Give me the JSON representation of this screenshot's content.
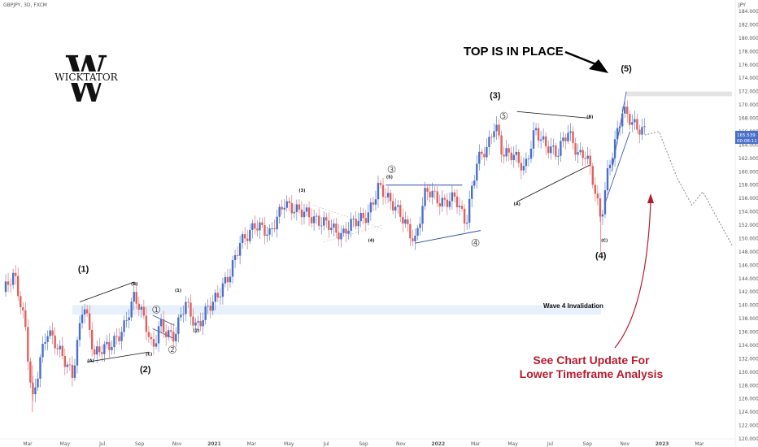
{
  "header": {
    "symbol": "GBPJPY, 3D, FXCM",
    "currency": "JPY"
  },
  "logo": {
    "text": "WICKTATOR"
  },
  "annotations": {
    "headline": "TOP IS IN PLACE",
    "wave4_invalidation": "Wave 4 Invalidation",
    "update_line1": "See Chart Update For",
    "update_line2": "Lower Timeframe Analysis"
  },
  "price_badge": {
    "price": "165.539",
    "countdown": "00:08:11"
  },
  "colors": {
    "up": "#4a6fc9",
    "down": "#e0615d",
    "invalidation_band": "#e8f0fb",
    "headline": "#000000",
    "update_text": "#b71c2e"
  },
  "chart_data": {
    "type": "candlestick",
    "y_axis": {
      "side": "right",
      "min": 120,
      "max": 184,
      "ticks": [
        120,
        122,
        124,
        126,
        128,
        130,
        132,
        134,
        136,
        138,
        140,
        142,
        144,
        146,
        148,
        150,
        152,
        154,
        156,
        158,
        160,
        162,
        164,
        166,
        168,
        170,
        172,
        174,
        176,
        178,
        180,
        182,
        184
      ]
    },
    "x_ticks": [
      "Mar",
      "May",
      "Jul",
      "Sep",
      "Nov",
      "2021",
      "Mar",
      "May",
      "Jul",
      "Sep",
      "Nov",
      "2022",
      "Mar",
      "May",
      "Jul",
      "Sep",
      "Nov",
      "2023",
      "Mar"
    ],
    "price_path": [
      {
        "t": 0,
        "p": 142
      },
      {
        "t": 0.015,
        "p": 144
      },
      {
        "t": 0.03,
        "p": 137
      },
      {
        "t": 0.04,
        "p": 126
      },
      {
        "t": 0.05,
        "p": 132
      },
      {
        "t": 0.06,
        "p": 136
      },
      {
        "t": 0.075,
        "p": 133
      },
      {
        "t": 0.095,
        "p": 130
      },
      {
        "t": 0.11,
        "p": 141
      },
      {
        "t": 0.125,
        "p": 132
      },
      {
        "t": 0.145,
        "p": 134
      },
      {
        "t": 0.165,
        "p": 137
      },
      {
        "t": 0.18,
        "p": 141
      },
      {
        "t": 0.195,
        "p": 137
      },
      {
        "t": 0.205,
        "p": 133.5
      },
      {
        "t": 0.215,
        "p": 138
      },
      {
        "t": 0.225,
        "p": 136
      },
      {
        "t": 0.235,
        "p": 135
      },
      {
        "t": 0.25,
        "p": 140
      },
      {
        "t": 0.265,
        "p": 137
      },
      {
        "t": 0.28,
        "p": 140
      },
      {
        "t": 0.295,
        "p": 141
      },
      {
        "t": 0.31,
        "p": 144
      },
      {
        "t": 0.325,
        "p": 150
      },
      {
        "t": 0.345,
        "p": 152
      },
      {
        "t": 0.365,
        "p": 150
      },
      {
        "t": 0.385,
        "p": 156
      },
      {
        "t": 0.405,
        "p": 154
      },
      {
        "t": 0.425,
        "p": 152.5
      },
      {
        "t": 0.445,
        "p": 153
      },
      {
        "t": 0.465,
        "p": 150
      },
      {
        "t": 0.48,
        "p": 152
      },
      {
        "t": 0.5,
        "p": 154
      },
      {
        "t": 0.515,
        "p": 158
      },
      {
        "t": 0.53,
        "p": 155
      },
      {
        "t": 0.55,
        "p": 153
      },
      {
        "t": 0.565,
        "p": 150
      },
      {
        "t": 0.58,
        "p": 157
      },
      {
        "t": 0.6,
        "p": 155
      },
      {
        "t": 0.62,
        "p": 157
      },
      {
        "t": 0.635,
        "p": 152
      },
      {
        "t": 0.65,
        "p": 161
      },
      {
        "t": 0.665,
        "p": 164
      },
      {
        "t": 0.675,
        "p": 168
      },
      {
        "t": 0.685,
        "p": 163
      },
      {
        "t": 0.7,
        "p": 162
      },
      {
        "t": 0.715,
        "p": 160
      },
      {
        "t": 0.73,
        "p": 167
      },
      {
        "t": 0.745,
        "p": 164
      },
      {
        "t": 0.76,
        "p": 162
      },
      {
        "t": 0.775,
        "p": 166
      },
      {
        "t": 0.79,
        "p": 163
      },
      {
        "t": 0.8,
        "p": 163
      },
      {
        "t": 0.81,
        "p": 158
      },
      {
        "t": 0.82,
        "p": 152
      },
      {
        "t": 0.83,
        "p": 160
      },
      {
        "t": 0.84,
        "p": 165
      },
      {
        "t": 0.85,
        "p": 170
      },
      {
        "t": 0.86,
        "p": 168
      },
      {
        "t": 0.87,
        "p": 166
      },
      {
        "t": 0.88,
        "p": 165.5
      }
    ],
    "projection": [
      {
        "t": 0.88,
        "p": 165.5
      },
      {
        "t": 0.9,
        "p": 166
      },
      {
        "t": 0.925,
        "p": 159
      },
      {
        "t": 0.945,
        "p": 155
      },
      {
        "t": 0.96,
        "p": 157
      },
      {
        "t": 1.0,
        "p": 149
      }
    ],
    "wave_labels": [
      {
        "text": "(1)",
        "t": 0.11,
        "p": 145,
        "size": "big"
      },
      {
        "text": "(2)",
        "t": 0.195,
        "p": 130,
        "size": "big"
      },
      {
        "text": "(3)",
        "t": 0.675,
        "p": 171,
        "size": "big"
      },
      {
        "text": "(4)",
        "t": 0.82,
        "p": 147,
        "size": "big"
      },
      {
        "text": "(5)",
        "t": 0.855,
        "p": 175,
        "size": "big"
      },
      {
        "text": "(B)",
        "t": 0.18,
        "p": 143,
        "size": "small"
      },
      {
        "text": "(A)",
        "t": 0.12,
        "p": 131.5,
        "size": "small"
      },
      {
        "text": "(C)",
        "t": 0.2,
        "p": 132.5,
        "size": "small"
      },
      {
        "text": "(1)",
        "t": 0.24,
        "p": 142,
        "size": "small"
      },
      {
        "text": "(2)",
        "t": 0.265,
        "p": 136,
        "size": "small"
      },
      {
        "text": "(3)",
        "t": 0.41,
        "p": 157,
        "size": "small"
      },
      {
        "text": "(4)",
        "t": 0.505,
        "p": 149.5,
        "size": "small"
      },
      {
        "text": "(5)",
        "t": 0.53,
        "p": 159,
        "size": "small"
      },
      {
        "text": "(A)",
        "t": 0.705,
        "p": 155,
        "size": "small"
      },
      {
        "text": "(B)",
        "t": 0.805,
        "p": 168,
        "size": "small"
      },
      {
        "text": "(C)",
        "t": 0.825,
        "p": 149.5,
        "size": "small"
      },
      {
        "text": "1",
        "t": 0.21,
        "p": 139,
        "size": "circled"
      },
      {
        "text": "2",
        "t": 0.232,
        "p": 133,
        "size": "circled"
      },
      {
        "text": "3",
        "t": 0.533,
        "p": 160,
        "size": "circled"
      },
      {
        "text": "4",
        "t": 0.648,
        "p": 149,
        "size": "circled"
      },
      {
        "text": "5",
        "t": 0.687,
        "p": 168,
        "size": "circled"
      }
    ]
  }
}
